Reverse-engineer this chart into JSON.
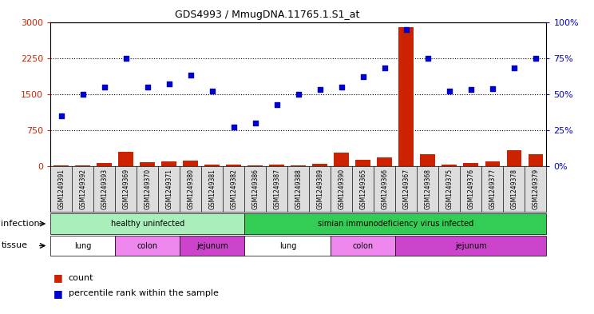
{
  "title": "GDS4993 / MmugDNA.11765.1.S1_at",
  "samples": [
    "GSM1249391",
    "GSM1249392",
    "GSM1249393",
    "GSM1249369",
    "GSM1249370",
    "GSM1249371",
    "GSM1249380",
    "GSM1249381",
    "GSM1249382",
    "GSM1249386",
    "GSM1249387",
    "GSM1249388",
    "GSM1249389",
    "GSM1249390",
    "GSM1249365",
    "GSM1249366",
    "GSM1249367",
    "GSM1249368",
    "GSM1249375",
    "GSM1249376",
    "GSM1249377",
    "GSM1249378",
    "GSM1249379"
  ],
  "count_values": [
    20,
    15,
    65,
    300,
    80,
    110,
    115,
    35,
    30,
    20,
    30,
    18,
    55,
    295,
    130,
    180,
    2900,
    250,
    30,
    65,
    110,
    340,
    250
  ],
  "percentile_values": [
    35,
    50,
    55,
    75,
    55,
    57,
    63,
    52,
    27,
    30,
    43,
    50,
    53,
    55,
    62,
    68,
    95,
    75,
    52,
    53,
    54,
    68,
    75
  ],
  "ylim_left": [
    0,
    3000
  ],
  "ylim_right": [
    0,
    100
  ],
  "yticks_left": [
    0,
    750,
    1500,
    2250,
    3000
  ],
  "yticks_right": [
    0,
    25,
    50,
    75,
    100
  ],
  "infection_groups": [
    {
      "label": "healthy uninfected",
      "start": 0,
      "end": 9
    },
    {
      "label": "simian immunodeficiency virus infected",
      "start": 9,
      "end": 23
    }
  ],
  "tissue_groups": [
    {
      "label": "lung",
      "start": 0,
      "end": 3,
      "tissue": "lung"
    },
    {
      "label": "colon",
      "start": 3,
      "end": 6,
      "tissue": "colon"
    },
    {
      "label": "jejunum",
      "start": 6,
      "end": 9,
      "tissue": "jejunum"
    },
    {
      "label": "lung",
      "start": 9,
      "end": 13,
      "tissue": "lung"
    },
    {
      "label": "colon",
      "start": 13,
      "end": 16,
      "tissue": "colon"
    },
    {
      "label": "jejunum",
      "start": 16,
      "end": 23,
      "tissue": "jejunum"
    }
  ],
  "bar_color": "#CC2200",
  "dot_color": "#0000CC",
  "healthy_color": "#AAEEBB",
  "infected_color": "#33CC55",
  "lung_color": "#FFFFFF",
  "colon_color": "#EE88EE",
  "jejunum_color": "#CC44CC",
  "plot_bg": "#FFFFFF",
  "xticklabels_bg": "#DDDDDD"
}
